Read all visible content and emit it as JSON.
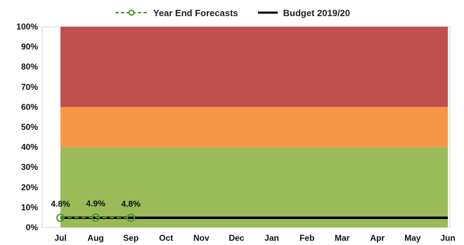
{
  "chart_data": {
    "type": "line",
    "categories": [
      "Jul",
      "Aug",
      "Sep",
      "Oct",
      "Nov",
      "Dec",
      "Jan",
      "Feb",
      "Mar",
      "Apr",
      "May",
      "Jun"
    ],
    "series": [
      {
        "name": "Year End Forecasts",
        "values": [
          4.8,
          4.9,
          4.8,
          null,
          null,
          null,
          null,
          null,
          null,
          null,
          null,
          null
        ],
        "color": "#4f9a2a",
        "style": "dashed-with-circle-markers"
      },
      {
        "name": "Budget 2019/20",
        "values": [
          4.8,
          4.8,
          4.8,
          4.8,
          4.8,
          4.8,
          4.8,
          4.8,
          4.8,
          4.8,
          4.8,
          4.8
        ],
        "color": "#000000",
        "style": "solid"
      }
    ],
    "data_labels": [
      "4.8%",
      "4.9%",
      "4.8%"
    ],
    "bands": [
      {
        "from": 0,
        "to": 40,
        "color": "#9bbb59"
      },
      {
        "from": 40,
        "to": 60,
        "color": "#f79646"
      },
      {
        "from": 60,
        "to": 100,
        "color": "#c0504d"
      }
    ],
    "y_ticks": [
      "0%",
      "10%",
      "20%",
      "30%",
      "40%",
      "50%",
      "60%",
      "70%",
      "80%",
      "90%",
      "100%"
    ],
    "ylim": [
      0,
      100
    ],
    "legend_position": "top",
    "grid": false
  }
}
